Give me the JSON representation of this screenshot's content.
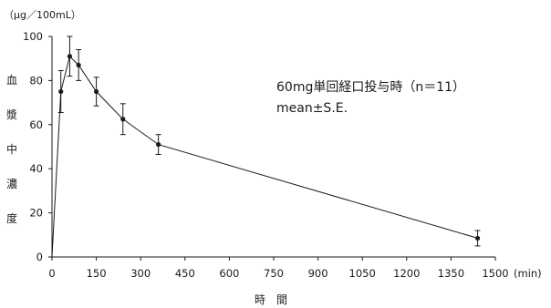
{
  "chart_data": {
    "type": "line",
    "y_unit_label": "（μg／100mL）",
    "x_unit_label": "(min)",
    "ylabel_chars": [
      "血",
      "漿",
      "中",
      "濃",
      "度"
    ],
    "xlabel": "時　間",
    "annotation_lines": [
      "60mg単回経口投与時（n＝11）",
      "mean±S.E."
    ],
    "xlim": [
      0,
      1500
    ],
    "ylim": [
      0,
      100
    ],
    "x_ticks": [
      0,
      150,
      300,
      450,
      600,
      750,
      900,
      1050,
      1200,
      1350,
      1500
    ],
    "y_ticks": [
      0,
      20,
      40,
      60,
      80,
      100
    ],
    "grid": false,
    "series": [
      {
        "x": [
          0,
          30,
          60,
          90,
          150,
          240,
          360,
          1440
        ],
        "y": [
          0,
          75,
          91,
          87,
          75,
          62.5,
          51,
          8.5
        ],
        "se": [
          0,
          9.5,
          9,
          7,
          6.5,
          7,
          4.5,
          3.5
        ]
      }
    ]
  }
}
